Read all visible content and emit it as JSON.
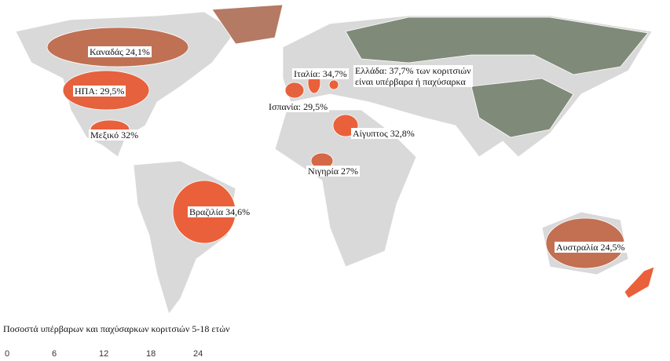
{
  "map": {
    "annotations": [
      {
        "label": "Καναδάς 24,1%",
        "value": 24.1
      },
      {
        "label": "ΗΠΑ: 29,5%",
        "value": 29.5
      },
      {
        "label": "Μεξικό 32%",
        "value": 32
      },
      {
        "label": "Βραζιλία 34,6%",
        "value": 34.6
      },
      {
        "label": "Ιταλία: 34,7%",
        "value": 34.7
      },
      {
        "label": [
          "Ελλάδα: 37,7% των κοριτσιών",
          "είναι υπέρβαρα ή παχύσαρκα"
        ],
        "value": 37.7
      },
      {
        "label": "Ισπανία: 29,5%",
        "value": 29.5
      },
      {
        "label": "Αίγυπτος 32,8%",
        "value": 32.8
      },
      {
        "label": "Νιγηρία 27%",
        "value": 27
      },
      {
        "label": "Αυστραλία 24,5%",
        "value": 24.5
      }
    ],
    "legend": {
      "title": "Ποσοστά υπέρβαρων και παχύσαρκων κοριτσιών 5-18 ετών",
      "range": [
        0,
        30
      ],
      "ticks": [
        0,
        6,
        12,
        18,
        24
      ],
      "colors": [
        "#2bb3b3",
        "#7f8a79",
        "#ea603b"
      ]
    }
  }
}
